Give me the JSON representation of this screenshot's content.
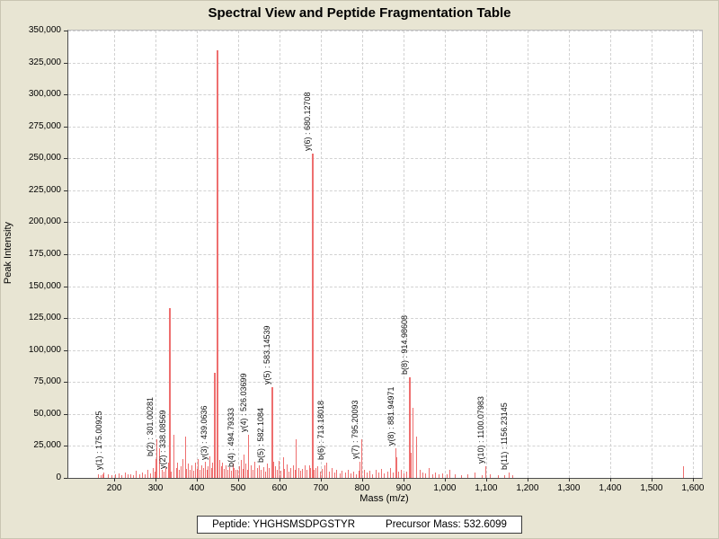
{
  "title": "Spectral View and Peptide Fragmentation Table",
  "footer": {
    "peptide_label": "Peptide: YHGHSMSDPGSTYR",
    "precursor_label": "Precursor Mass: 532.6099"
  },
  "colors": {
    "background": "#e8e5d3",
    "plot_background": "#ffffff",
    "peak": "#ee6f6f",
    "gridline": "#d2d2d2"
  },
  "chart_data": {
    "type": "bar",
    "title": "Spectral View and Peptide Fragmentation Table",
    "xlabel": "Mass (m/z)",
    "ylabel": "Peak Intensity",
    "xlim": [
      89,
      1622
    ],
    "ylim": [
      0,
      350000
    ],
    "grid": true,
    "x_ticks": [
      {
        "value": 200,
        "label": "200"
      },
      {
        "value": 300,
        "label": "300"
      },
      {
        "value": 400,
        "label": "400"
      },
      {
        "value": 500,
        "label": "500"
      },
      {
        "value": 600,
        "label": "600"
      },
      {
        "value": 700,
        "label": "700"
      },
      {
        "value": 800,
        "label": "800"
      },
      {
        "value": 900,
        "label": "900"
      },
      {
        "value": 1000,
        "label": "1,000"
      },
      {
        "value": 1100,
        "label": "1,100"
      },
      {
        "value": 1200,
        "label": "1,200"
      },
      {
        "value": 1300,
        "label": "1,300"
      },
      {
        "value": 1400,
        "label": "1,400"
      },
      {
        "value": 1500,
        "label": "1,500"
      },
      {
        "value": 1600,
        "label": "1,600"
      }
    ],
    "y_ticks": [
      {
        "value": 0,
        "label": "0"
      },
      {
        "value": 25000,
        "label": "25,000"
      },
      {
        "value": 50000,
        "label": "50,000"
      },
      {
        "value": 75000,
        "label": "75,000"
      },
      {
        "value": 100000,
        "label": "100,000"
      },
      {
        "value": 125000,
        "label": "125,000"
      },
      {
        "value": 150000,
        "label": "150,000"
      },
      {
        "value": 175000,
        "label": "175,000"
      },
      {
        "value": 200000,
        "label": "200,000"
      },
      {
        "value": 225000,
        "label": "225,000"
      },
      {
        "value": 250000,
        "label": "250,000"
      },
      {
        "value": 275000,
        "label": "275,000"
      },
      {
        "value": 300000,
        "label": "300,000"
      },
      {
        "value": 325000,
        "label": "325,000"
      },
      {
        "value": 350000,
        "label": "350,000"
      }
    ],
    "labeled_fragments": [
      {
        "ion": "y(1)",
        "mz": 175.00925,
        "intensity": 4000,
        "label": "y(1) : 175.00925"
      },
      {
        "ion": "b(2)",
        "mz": 301.00281,
        "intensity": 15000,
        "label": "b(2) : 301.00281"
      },
      {
        "ion": "y(2)",
        "mz": 338.08569,
        "intensity": 5000,
        "label": "y(2) : 338.08569"
      },
      {
        "ion": "y(3)",
        "mz": 439.0636,
        "intensity": 12000,
        "label": "y(3) : 439.0636"
      },
      {
        "ion": "b(4)",
        "mz": 494.79333,
        "intensity": 6000,
        "label": "b(4) : 494.79333"
      },
      {
        "ion": "y(4)",
        "mz": 526.03699,
        "intensity": 34000,
        "label": "y(4) : 526.03699"
      },
      {
        "ion": "b(5)",
        "mz": 582.1084,
        "intensity": 10000,
        "label": "b(5) : 582.1084"
      },
      {
        "ion": "y(5)",
        "mz": 583.14539,
        "intensity": 71000,
        "label": "y(5) : 583.14539"
      },
      {
        "ion": "y(6)",
        "mz": 680.12708,
        "intensity": 254000,
        "label": "y(6) : 680.12708"
      },
      {
        "ion": "b(6)",
        "mz": 713.18018,
        "intensity": 12000,
        "label": "b(6) : 713.18018"
      },
      {
        "ion": "y(7)",
        "mz": 795.20093,
        "intensity": 13000,
        "label": "y(7) : 795.20093"
      },
      {
        "ion": "y(8)",
        "mz": 881.94971,
        "intensity": 23000,
        "label": "y(8) : 881.94971"
      },
      {
        "ion": "b(8)",
        "mz": 914.98608,
        "intensity": 79000,
        "label": "b(8) : 914.98608"
      },
      {
        "ion": "y(10)",
        "mz": 1100.07983,
        "intensity": 9000,
        "label": "y(10) : 1100.07983"
      },
      {
        "ion": "b(11)",
        "mz": 1156.23145,
        "intensity": 4000,
        "label": "b(11) : 1156.23145"
      }
    ],
    "peaks": [
      [
        162,
        2500
      ],
      [
        168,
        2000
      ],
      [
        172,
        3000
      ],
      [
        175.00925,
        4000,
        "y(1) : 175.00925"
      ],
      [
        186,
        2500
      ],
      [
        194,
        2000
      ],
      [
        203,
        2500
      ],
      [
        211,
        3500
      ],
      [
        219,
        2000
      ],
      [
        226,
        4500
      ],
      [
        233,
        2500
      ],
      [
        240,
        3000
      ],
      [
        247,
        2000
      ],
      [
        254,
        5500
      ],
      [
        261,
        3000
      ],
      [
        268,
        4500
      ],
      [
        275,
        2500
      ],
      [
        282,
        6000
      ],
      [
        288,
        3500
      ],
      [
        294,
        8000
      ],
      [
        298,
        5000
      ],
      [
        301.00281,
        15000,
        "b(2) : 301.00281"
      ],
      [
        304,
        30000
      ],
      [
        310,
        23000
      ],
      [
        316,
        6500
      ],
      [
        321,
        5000
      ],
      [
        326,
        7500
      ],
      [
        331,
        12000
      ],
      [
        335,
        133000
      ],
      [
        338.08569,
        5000,
        "y(2) : 338.08569",
        -4
      ],
      [
        344,
        34000
      ],
      [
        350,
        8000
      ],
      [
        354,
        12000
      ],
      [
        358,
        6000
      ],
      [
        362,
        9000
      ],
      [
        366,
        15000
      ],
      [
        372,
        32000
      ],
      [
        376,
        7000
      ],
      [
        380,
        11000
      ],
      [
        384,
        6000
      ],
      [
        388,
        9500
      ],
      [
        392,
        5500
      ],
      [
        396,
        12000
      ],
      [
        400,
        7000
      ],
      [
        404,
        15000
      ],
      [
        408,
        6000
      ],
      [
        412,
        10000
      ],
      [
        416,
        8000
      ],
      [
        420,
        13000
      ],
      [
        424,
        6500
      ],
      [
        428,
        9000
      ],
      [
        432,
        17000
      ],
      [
        436,
        7500
      ],
      [
        439.0636,
        12000,
        "y(3) : 439.0636",
        -4
      ],
      [
        443.5,
        82000
      ],
      [
        448,
        25000
      ],
      [
        450,
        334500
      ],
      [
        455,
        14000
      ],
      [
        459,
        9000
      ],
      [
        463,
        12000
      ],
      [
        467,
        7000
      ],
      [
        471,
        10000
      ],
      [
        475,
        6000
      ],
      [
        479,
        8500
      ],
      [
        483,
        5500
      ],
      [
        487,
        11000
      ],
      [
        491,
        7500
      ],
      [
        494.79333,
        6000,
        "b(4) : 494.79333"
      ],
      [
        498,
        6500
      ],
      [
        503,
        9000
      ],
      [
        507,
        14000
      ],
      [
        511,
        7000
      ],
      [
        515,
        18000
      ],
      [
        519,
        11000
      ],
      [
        523,
        6000
      ],
      [
        526.03699,
        34000,
        "y(4) : 526.03699"
      ],
      [
        531,
        9500
      ],
      [
        536,
        6500
      ],
      [
        541,
        13000
      ],
      [
        546,
        7500
      ],
      [
        551,
        10000
      ],
      [
        556,
        6000
      ],
      [
        561,
        8500
      ],
      [
        566,
        5000
      ],
      [
        571,
        11000
      ],
      [
        576,
        7500
      ],
      [
        582.1084,
        10000,
        "b(5) : 582.1084",
        -7
      ],
      [
        583.14539,
        71000,
        "y(5) : 583.14539"
      ],
      [
        585.5,
        13000
      ],
      [
        590,
        9000
      ],
      [
        594,
        6000
      ],
      [
        599,
        13500
      ],
      [
        604,
        5500
      ],
      [
        609,
        16000
      ],
      [
        613,
        7000
      ],
      [
        618,
        10500
      ],
      [
        623,
        5000
      ],
      [
        628,
        7500
      ],
      [
        633,
        9500
      ],
      [
        637,
        6000
      ],
      [
        641,
        30000
      ],
      [
        646,
        8000
      ],
      [
        651,
        5500
      ],
      [
        656,
        7000
      ],
      [
        661,
        10000
      ],
      [
        666,
        6500
      ],
      [
        672,
        10000
      ],
      [
        676,
        8000
      ],
      [
        680.12708,
        254000,
        "y(6) : 680.12708"
      ],
      [
        684,
        6000
      ],
      [
        687,
        8000
      ],
      [
        692,
        9000
      ],
      [
        698,
        5000
      ],
      [
        704,
        7000
      ],
      [
        709,
        9500
      ],
      [
        713.18018,
        12000,
        "b(6) : 713.18018"
      ],
      [
        721,
        5000
      ],
      [
        727,
        8000
      ],
      [
        733,
        4000
      ],
      [
        739,
        6500
      ],
      [
        746,
        3500
      ],
      [
        752,
        5500
      ],
      [
        759,
        4000
      ],
      [
        766,
        6000
      ],
      [
        773,
        3500
      ],
      [
        780,
        5000
      ],
      [
        787,
        3000
      ],
      [
        792,
        5500
      ],
      [
        795.20093,
        13000,
        "y(7) : 795.20093"
      ],
      [
        800,
        30000
      ],
      [
        806,
        6000
      ],
      [
        812,
        4000
      ],
      [
        819,
        5500
      ],
      [
        826,
        3000
      ],
      [
        833,
        6500
      ],
      [
        840,
        4000
      ],
      [
        847,
        7000
      ],
      [
        854,
        3500
      ],
      [
        861,
        5000
      ],
      [
        868,
        8000
      ],
      [
        875,
        4500
      ],
      [
        881.94971,
        23000,
        "y(8) : 881.94971"
      ],
      [
        884,
        16000
      ],
      [
        889,
        5000
      ],
      [
        895,
        6500
      ],
      [
        902,
        3500
      ],
      [
        908,
        5000
      ],
      [
        914.98608,
        79000,
        "b(8) : 914.98608"
      ],
      [
        918,
        20000
      ],
      [
        922,
        55000
      ],
      [
        931,
        32000
      ],
      [
        941,
        6000
      ],
      [
        947,
        4000
      ],
      [
        954,
        3500
      ],
      [
        962,
        8000
      ],
      [
        970,
        3000
      ],
      [
        978,
        4500
      ],
      [
        986,
        2500
      ],
      [
        995,
        3500
      ],
      [
        1005,
        3000
      ],
      [
        1013,
        6000
      ],
      [
        1025,
        2500
      ],
      [
        1040,
        2000
      ],
      [
        1055,
        2500
      ],
      [
        1072,
        4000
      ],
      [
        1090,
        2000
      ],
      [
        1100.07983,
        9000,
        "y(10) : 1100.07983"
      ],
      [
        1110,
        2800
      ],
      [
        1130,
        2200
      ],
      [
        1145,
        2000
      ],
      [
        1156.23145,
        4000,
        "b(11) : 1156.23145"
      ],
      [
        1165,
        1800
      ],
      [
        1578,
        9000
      ]
    ]
  }
}
